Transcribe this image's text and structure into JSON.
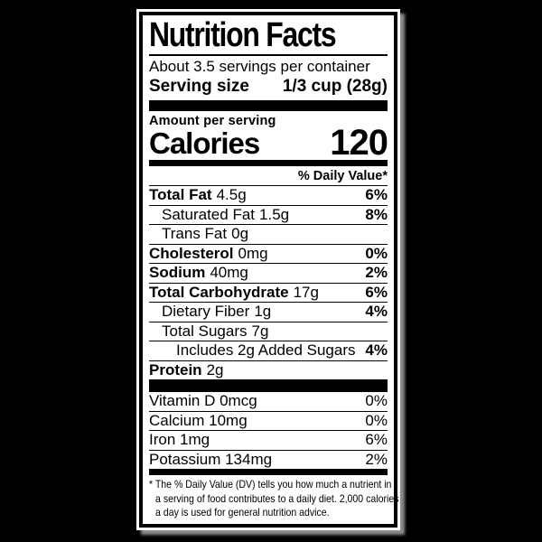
{
  "colors": {
    "background": "#000000",
    "label_bg": "#ffffff",
    "text": "#000000",
    "shadow": "#8c8c8c"
  },
  "label": {
    "title": "Nutrition Facts",
    "servings_per_container": "About 3.5 servings per container",
    "serving_size_label": "Serving size",
    "serving_size_value": "1/3 cup (28g)",
    "amount_per_serving": "Amount per serving",
    "calories_label": "Calories",
    "calories_value": "120",
    "daily_value_header": "% Daily Value*",
    "nutrients": [
      {
        "name": "Total Fat",
        "amount": "4.5g",
        "dv": "6%"
      },
      {
        "name": "Saturated Fat",
        "amount": "1.5g",
        "dv": "8%"
      },
      {
        "name": "Trans Fat",
        "amount": "0g",
        "dv": ""
      },
      {
        "name": "Cholesterol",
        "amount": "0mg",
        "dv": "0%"
      },
      {
        "name": "Sodium",
        "amount": "40mg",
        "dv": "2%"
      },
      {
        "name": "Total Carbohydrate",
        "amount": "17g",
        "dv": "6%"
      },
      {
        "name": "Dietary Fiber",
        "amount": "1g",
        "dv": "4%"
      },
      {
        "name": "Total Sugars",
        "amount": "7g",
        "dv": ""
      },
      {
        "name": "Includes 2g Added Sugars",
        "amount": "",
        "dv": "4%"
      },
      {
        "name": "Protein",
        "amount": "2g",
        "dv": ""
      }
    ],
    "micronutrients": [
      {
        "name": "Vitamin D 0mcg",
        "dv": "0%"
      },
      {
        "name": "Calcium 10mg",
        "dv": "0%"
      },
      {
        "name": "Iron 1mg",
        "dv": "6%"
      },
      {
        "name": "Potassium 134mg",
        "dv": "2%"
      }
    ],
    "footnote_lines": [
      "* The % Daily Value (DV) tells you how much a nutrient in",
      "a serving of food contributes to a daily diet. 2,000 calories",
      "a day is used for general nutrition advice."
    ]
  }
}
